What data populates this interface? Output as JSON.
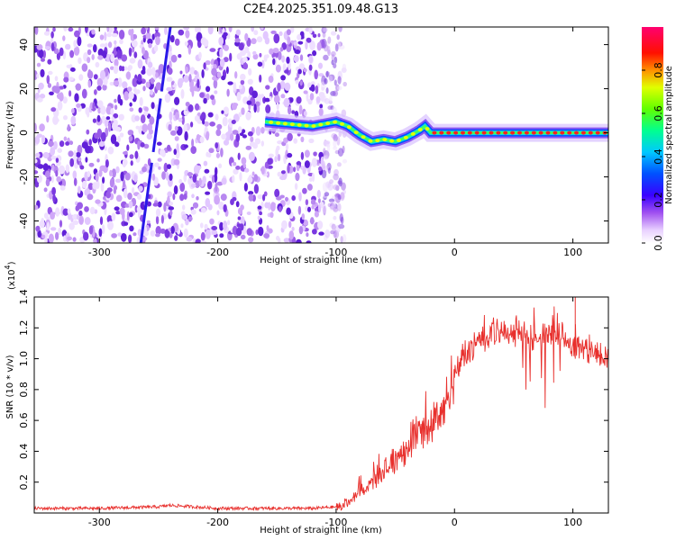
{
  "colors": {
    "trace": "#e8302d",
    "background": "#ffffff",
    "axis": "#000000",
    "colormap": [
      "#ffffff",
      "#f0e0ff",
      "#c8a0f0",
      "#8a2be2",
      "#3a00ff",
      "#0050ff",
      "#00c8ff",
      "#00ff80",
      "#a0ff00",
      "#ffff00",
      "#ff8000",
      "#ff0000",
      "#ff0060"
    ]
  },
  "chart_data": [
    {
      "type": "heatmap",
      "title": "C2E4.2025.351.09.48.G13",
      "xlabel": "Height of straight line (km)",
      "ylabel": "Frequency (Hz)",
      "xlim": [
        -355,
        130
      ],
      "ylim": [
        -50,
        48
      ],
      "xticks": [
        -300,
        -200,
        -100,
        0,
        100
      ],
      "yticks": [
        -40,
        -20,
        0,
        20,
        40
      ],
      "colorbar": {
        "label": "Normalized spectral amplitude",
        "range": [
          0,
          1
        ],
        "ticks": [
          0.0,
          0.2,
          0.4,
          0.6,
          0.8
        ],
        "tick_labels": [
          "0.0",
          "0.2",
          "0.4",
          "0.6",
          "0.8"
        ]
      },
      "features": [
        {
          "name": "noise region",
          "x_range": [
            -355,
            -100
          ],
          "y_range": [
            -50,
            48
          ]
        },
        {
          "name": "drifting line",
          "x_start": -265,
          "y_start": -50,
          "x_end": -240,
          "y_end": 48
        },
        {
          "name": "carrier trace",
          "x": [
            -160,
            -140,
            -120,
            -100,
            -90,
            -80,
            -70,
            -60,
            -50,
            -40,
            -30,
            -25,
            -20,
            -10,
            0,
            50,
            100,
            130
          ],
          "y": [
            5,
            4,
            3,
            5,
            3,
            -1,
            -4,
            -3,
            -4,
            -2,
            1,
            3,
            0,
            0,
            0,
            0,
            0,
            0
          ]
        }
      ]
    },
    {
      "type": "line",
      "xlabel": "Height of straight line (km)",
      "ylabel": "SNR (10 * v/v)",
      "yscale_label": "(x10",
      "yscale_exp": "4",
      "yscale_suffix": ")",
      "xlim": [
        -355,
        130
      ],
      "ylim": [
        0,
        1.4
      ],
      "xticks": [
        -300,
        -200,
        -100,
        0,
        100
      ],
      "yticks": [
        0.2,
        0.4,
        0.6,
        0.8,
        1.0,
        1.2,
        1.4
      ],
      "ytick_labels": [
        "0.2",
        "0.4",
        "0.6",
        "0.8",
        "1.0",
        "1.2",
        "1.4"
      ],
      "series": [
        {
          "name": "SNR",
          "envelope": {
            "x": [
              -355,
              -300,
              -250,
              -240,
              -200,
              -120,
              -100,
              -90,
              -80,
              -70,
              -60,
              -50,
              -40,
              -30,
              -20,
              -10,
              0,
              10,
              20,
              30,
              40,
              50,
              60,
              70,
              80,
              90,
              100,
              110,
              120,
              130
            ],
            "y": [
              0.03,
              0.03,
              0.04,
              0.05,
              0.03,
              0.03,
              0.04,
              0.08,
              0.15,
              0.25,
              0.33,
              0.4,
              0.5,
              0.62,
              0.72,
              0.82,
              1.0,
              1.1,
              1.18,
              1.22,
              1.25,
              1.24,
              1.23,
              1.22,
              1.25,
              1.2,
              1.15,
              1.12,
              1.1,
              1.05
            ]
          }
        }
      ]
    }
  ]
}
